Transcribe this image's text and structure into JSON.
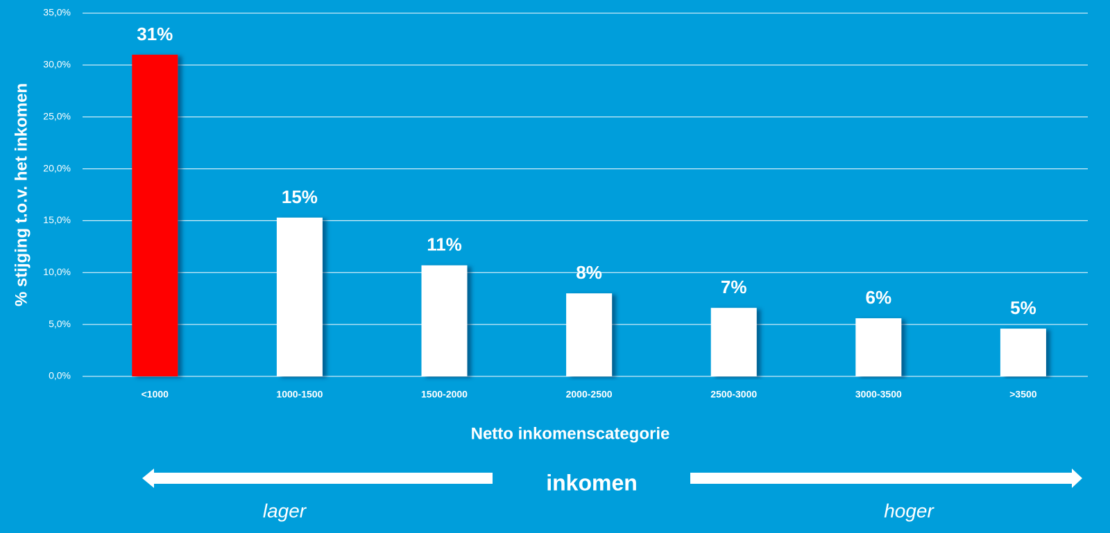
{
  "chart_data": {
    "type": "bar",
    "y_axis_label": "% stijging t.o.v. het inkomen",
    "x_axis_label": "Netto inkomenscategorie",
    "annotations": [
      "inkomen",
      "lager",
      "hoger"
    ],
    "categories": [
      "<1000",
      "1000-1500",
      "1500-2000",
      "2000-2500",
      "2500-3000",
      "3000-3500",
      ">3500"
    ],
    "values": [
      31.0,
      15.3,
      10.7,
      8.0,
      6.6,
      5.6,
      4.6
    ],
    "value_labels": [
      "31%",
      "15%",
      "11%",
      "8%",
      "7%",
      "6%",
      "5%"
    ],
    "colors": [
      "#ff0000",
      "#ffffff",
      "#ffffff",
      "#ffffff",
      "#ffffff",
      "#ffffff",
      "#ffffff"
    ],
    "ylim": [
      0,
      35
    ],
    "yticks": [
      {
        "value": 0,
        "label": "0,0%"
      },
      {
        "value": 5,
        "label": "5,0%"
      },
      {
        "value": 10,
        "label": "10,0%"
      },
      {
        "value": 15,
        "label": "15,0%"
      },
      {
        "value": 20,
        "label": "20,0%"
      },
      {
        "value": 25,
        "label": "25,0%"
      },
      {
        "value": 30,
        "label": "30,0%"
      },
      {
        "value": 35,
        "label": "35,0%"
      }
    ],
    "grid": true
  }
}
